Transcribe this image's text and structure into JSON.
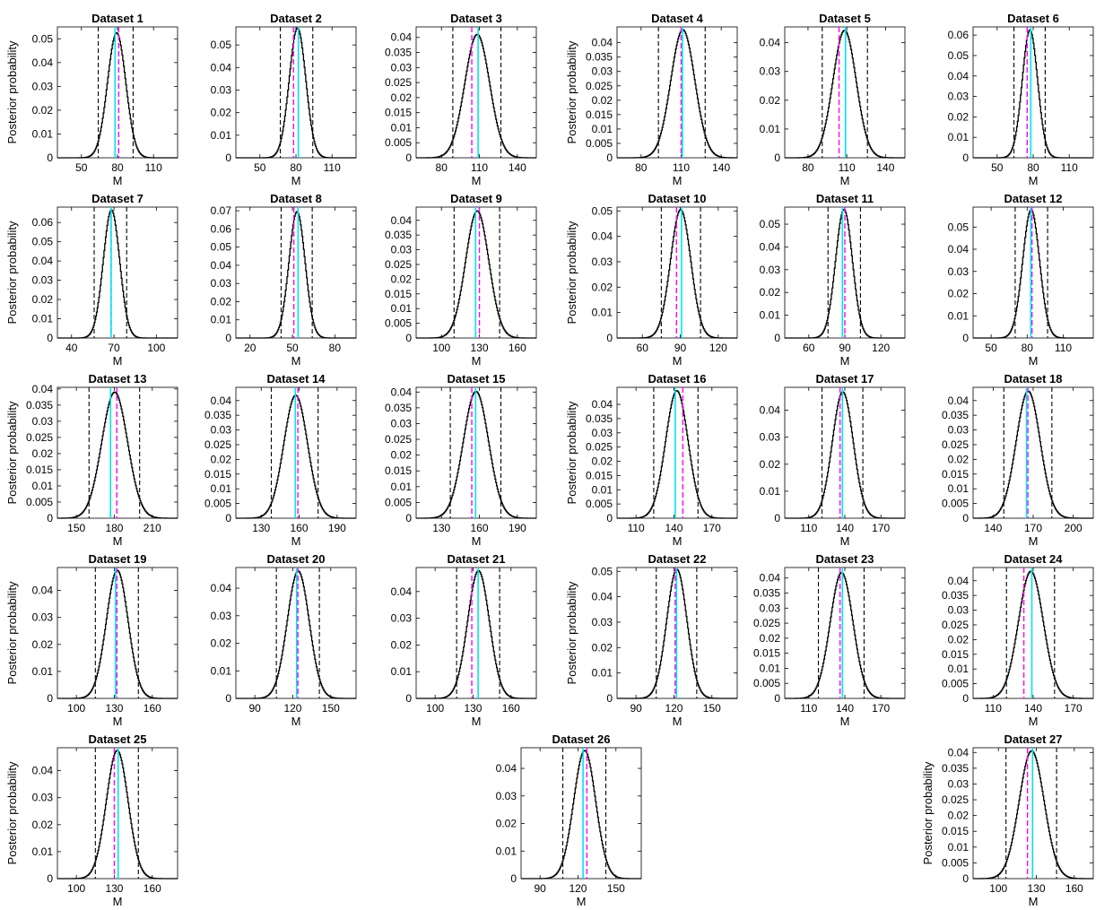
{
  "figure": {
    "ylabel": "Posterior probability",
    "xlabel": "M"
  },
  "chart_data": [
    {
      "type": "line",
      "title": "Dataset 1",
      "xlabel": "M",
      "ylabel": "Posterior probability",
      "xlim": [
        30,
        130
      ],
      "ylim": [
        0,
        0.055
      ],
      "xticks": [
        50,
        80,
        110
      ],
      "yticks": [
        0,
        0.01,
        0.02,
        0.03,
        0.04,
        0.05
      ],
      "peak": {
        "center": 79,
        "sd": 7.6,
        "height": 0.0525
      },
      "vlines": {
        "cyan": 78,
        "magenta": 81,
        "ci": [
          64,
          93
        ]
      }
    },
    {
      "type": "line",
      "title": "Dataset 2",
      "xlabel": "M",
      "ylabel": "",
      "xlim": [
        30,
        130
      ],
      "ylim": [
        0,
        0.058
      ],
      "xticks": [
        50,
        80,
        110
      ],
      "yticks": [
        0,
        0.01,
        0.02,
        0.03,
        0.04,
        0.05
      ],
      "peak": {
        "center": 81,
        "sd": 6.9,
        "height": 0.0575
      },
      "vlines": {
        "cyan": 82,
        "magenta": 78,
        "ci": [
          67,
          94
        ]
      }
    },
    {
      "type": "line",
      "title": "Dataset 3",
      "xlabel": "M",
      "ylabel": "",
      "xlim": [
        60,
        155
      ],
      "ylim": [
        0,
        0.0435
      ],
      "xticks": [
        80,
        110,
        140
      ],
      "yticks": [
        0,
        0.005,
        0.01,
        0.015,
        0.02,
        0.025,
        0.03,
        0.035,
        0.04
      ],
      "peak": {
        "center": 108,
        "sd": 9.8,
        "height": 0.041
      },
      "vlines": {
        "cyan": 109,
        "magenta": 104,
        "ci": [
          89,
          127
        ]
      }
    },
    {
      "type": "line",
      "title": "Dataset 4",
      "xlabel": "M",
      "ylabel": "Posterior probability",
      "xlim": [
        62,
        152
      ],
      "ylim": [
        0,
        0.0455
      ],
      "xticks": [
        80,
        110,
        140
      ],
      "yticks": [
        0,
        0.005,
        0.01,
        0.015,
        0.02,
        0.025,
        0.03,
        0.035,
        0.04
      ],
      "peak": {
        "center": 111,
        "sd": 9.0,
        "height": 0.0445
      },
      "vlines": {
        "cyan": 111,
        "magenta": 110,
        "ci": [
          93,
          128
        ]
      }
    },
    {
      "type": "line",
      "title": "Dataset 5",
      "xlabel": "M",
      "ylabel": "",
      "xlim": [
        62,
        155
      ],
      "ylim": [
        0,
        0.0455
      ],
      "xticks": [
        80,
        110,
        140
      ],
      "yticks": [
        0,
        0.01,
        0.02,
        0.03,
        0.04
      ],
      "peak": {
        "center": 108,
        "sd": 9.0,
        "height": 0.0443
      },
      "vlines": {
        "cyan": 109,
        "magenta": 104,
        "ci": [
          91,
          126
        ]
      }
    },
    {
      "type": "line",
      "title": "Dataset 6",
      "xlabel": "M",
      "ylabel": "",
      "xlim": [
        30,
        130
      ],
      "ylim": [
        0,
        0.064
      ],
      "xticks": [
        50,
        80,
        110
      ],
      "yticks": [
        0,
        0.01,
        0.02,
        0.03,
        0.04,
        0.05,
        0.06
      ],
      "peak": {
        "center": 77,
        "sd": 6.4,
        "height": 0.0625
      },
      "vlines": {
        "cyan": 78,
        "magenta": 75,
        "ci": [
          64,
          90
        ]
      }
    },
    {
      "type": "line",
      "title": "Dataset 7",
      "xlabel": "M",
      "ylabel": "Posterior probability",
      "xlim": [
        30,
        115
      ],
      "ylim": [
        0,
        0.068
      ],
      "xticks": [
        40,
        70,
        100
      ],
      "yticks": [
        0,
        0.01,
        0.02,
        0.03,
        0.04,
        0.05,
        0.06
      ],
      "peak": {
        "center": 68,
        "sd": 5.8,
        "height": 0.0665
      },
      "vlines": {
        "cyan": 68,
        "magenta": 68,
        "ci": [
          56,
          79
        ]
      }
    },
    {
      "type": "line",
      "title": "Dataset 8",
      "xlabel": "M",
      "ylabel": "",
      "xlim": [
        10,
        95
      ],
      "ylim": [
        0,
        0.072
      ],
      "xticks": [
        20,
        50,
        80
      ],
      "yticks": [
        0,
        0.01,
        0.02,
        0.03,
        0.04,
        0.05,
        0.06,
        0.07
      ],
      "peak": {
        "center": 53,
        "sd": 5.7,
        "height": 0.0695
      },
      "vlines": {
        "cyan": 54,
        "magenta": 51,
        "ci": [
          42,
          64
        ]
      }
    },
    {
      "type": "line",
      "title": "Dataset 9",
      "xlabel": "M",
      "ylabel": "",
      "xlim": [
        80,
        175
      ],
      "ylim": [
        0,
        0.0445
      ],
      "xticks": [
        100,
        130,
        160
      ],
      "yticks": [
        0,
        0.005,
        0.01,
        0.015,
        0.02,
        0.025,
        0.03,
        0.035,
        0.04
      ],
      "peak": {
        "center": 128,
        "sd": 9.2,
        "height": 0.0432
      },
      "vlines": {
        "cyan": 127,
        "magenta": 130,
        "ci": [
          110,
          146
        ]
      }
    },
    {
      "type": "line",
      "title": "Dataset 10",
      "xlabel": "M",
      "ylabel": "Posterior probability",
      "xlim": [
        40,
        135
      ],
      "ylim": [
        0,
        0.0515
      ],
      "xticks": [
        60,
        90,
        120
      ],
      "yticks": [
        0,
        0.01,
        0.02,
        0.03,
        0.04,
        0.05
      ],
      "peak": {
        "center": 90,
        "sd": 8.0,
        "height": 0.0505
      },
      "vlines": {
        "cyan": 91,
        "magenta": 87,
        "ci": [
          75,
          106
        ]
      }
    },
    {
      "type": "line",
      "title": "Dataset 11",
      "xlabel": "M",
      "ylabel": "",
      "xlim": [
        40,
        140
      ],
      "ylim": [
        0,
        0.0575
      ],
      "xticks": [
        60,
        90,
        120
      ],
      "yticks": [
        0,
        0.01,
        0.02,
        0.03,
        0.04,
        0.05
      ],
      "peak": {
        "center": 89,
        "sd": 7.0,
        "height": 0.0565
      },
      "vlines": {
        "cyan": 88,
        "magenta": 90,
        "ci": [
          76,
          103
        ]
      }
    },
    {
      "type": "line",
      "title": "Dataset 12",
      "xlabel": "M",
      "ylabel": "",
      "xlim": [
        35,
        135
      ],
      "ylim": [
        0,
        0.059
      ],
      "xticks": [
        50,
        80,
        110
      ],
      "yticks": [
        0,
        0.01,
        0.02,
        0.03,
        0.04,
        0.05
      ],
      "peak": {
        "center": 83,
        "sd": 7.0,
        "height": 0.0578
      },
      "vlines": {
        "cyan": 83,
        "magenta": 84,
        "ci": [
          70,
          97
        ]
      }
    },
    {
      "type": "line",
      "title": "Dataset 13",
      "xlabel": "M",
      "ylabel": "Posterior probability",
      "xlim": [
        135,
        230
      ],
      "ylim": [
        0,
        0.0405
      ],
      "xticks": [
        150,
        180,
        210
      ],
      "yticks": [
        0,
        0.005,
        0.01,
        0.015,
        0.02,
        0.025,
        0.03,
        0.035,
        0.04
      ],
      "peak": {
        "center": 180,
        "sd": 10.2,
        "height": 0.039
      },
      "vlines": {
        "cyan": 177,
        "magenta": 182,
        "ci": [
          160,
          200
        ]
      }
    },
    {
      "type": "line",
      "title": "Dataset 14",
      "xlabel": "M",
      "ylabel": "",
      "xlim": [
        110,
        205
      ],
      "ylim": [
        0,
        0.0445
      ],
      "xticks": [
        130,
        160,
        190
      ],
      "yticks": [
        0,
        0.005,
        0.01,
        0.015,
        0.02,
        0.025,
        0.03,
        0.035,
        0.04
      ],
      "peak": {
        "center": 157,
        "sd": 9.4,
        "height": 0.0418
      },
      "vlines": {
        "cyan": 157,
        "magenta": 159,
        "ci": [
          138,
          175
        ]
      }
    },
    {
      "type": "line",
      "title": "Dataset 15",
      "xlabel": "M",
      "ylabel": "",
      "xlim": [
        110,
        205
      ],
      "ylim": [
        0,
        0.0415
      ],
      "xticks": [
        130,
        160,
        190
      ],
      "yticks": [
        0,
        0.005,
        0.01,
        0.015,
        0.02,
        0.025,
        0.03,
        0.035,
        0.04
      ],
      "peak": {
        "center": 157,
        "sd": 10.0,
        "height": 0.0402
      },
      "vlines": {
        "cyan": 157,
        "magenta": 154,
        "ci": [
          137,
          177
        ]
      }
    },
    {
      "type": "line",
      "title": "Dataset 16",
      "xlabel": "M",
      "ylabel": "Posterior probability",
      "xlim": [
        95,
        190
      ],
      "ylim": [
        0,
        0.046
      ],
      "xticks": [
        110,
        140,
        170
      ],
      "yticks": [
        0,
        0.005,
        0.01,
        0.015,
        0.02,
        0.025,
        0.03,
        0.035,
        0.04
      ],
      "peak": {
        "center": 142,
        "sd": 8.9,
        "height": 0.0448
      },
      "vlines": {
        "cyan": 141,
        "magenta": 147,
        "ci": [
          124,
          159
        ]
      }
    },
    {
      "type": "line",
      "title": "Dataset 17",
      "xlabel": "M",
      "ylabel": "",
      "xlim": [
        90,
        190
      ],
      "ylim": [
        0,
        0.0485
      ],
      "xticks": [
        110,
        140,
        170
      ],
      "yticks": [
        0,
        0.01,
        0.02,
        0.03,
        0.04
      ],
      "peak": {
        "center": 138,
        "sd": 8.7,
        "height": 0.0468
      },
      "vlines": {
        "cyan": 138,
        "magenta": 136,
        "ci": [
          121,
          155
        ]
      }
    },
    {
      "type": "line",
      "title": "Dataset 18",
      "xlabel": "M",
      "ylabel": "",
      "xlim": [
        125,
        215
      ],
      "ylim": [
        0,
        0.0445
      ],
      "xticks": [
        140,
        170,
        200
      ],
      "yticks": [
        0,
        0.005,
        0.01,
        0.015,
        0.02,
        0.025,
        0.03,
        0.035,
        0.04
      ],
      "peak": {
        "center": 166,
        "sd": 9.0,
        "height": 0.0432
      },
      "vlines": {
        "cyan": 165,
        "magenta": 166,
        "ci": [
          148,
          184
        ]
      }
    },
    {
      "type": "line",
      "title": "Dataset 19",
      "xlabel": "M",
      "ylabel": "Posterior probability",
      "xlim": [
        85,
        180
      ],
      "ylim": [
        0,
        0.0485
      ],
      "xticks": [
        100,
        130,
        160
      ],
      "yticks": [
        0,
        0.01,
        0.02,
        0.03,
        0.04
      ],
      "peak": {
        "center": 132,
        "sd": 8.6,
        "height": 0.0475
      },
      "vlines": {
        "cyan": 131,
        "magenta": 132,
        "ci": [
          115,
          149
        ]
      }
    },
    {
      "type": "line",
      "title": "Dataset 20",
      "xlabel": "M",
      "ylabel": "",
      "xlim": [
        75,
        170
      ],
      "ylim": [
        0,
        0.0475
      ],
      "xticks": [
        90,
        120,
        150
      ],
      "yticks": [
        0,
        0.01,
        0.02,
        0.03,
        0.04
      ],
      "peak": {
        "center": 124,
        "sd": 8.7,
        "height": 0.0462
      },
      "vlines": {
        "cyan": 123,
        "magenta": 124,
        "ci": [
          107,
          141
        ]
      }
    },
    {
      "type": "line",
      "title": "Dataset 21",
      "xlabel": "M",
      "ylabel": "",
      "xlim": [
        85,
        180
      ],
      "ylim": [
        0,
        0.049
      ],
      "xticks": [
        100,
        130,
        160
      ],
      "yticks": [
        0,
        0.01,
        0.02,
        0.03,
        0.04
      ],
      "peak": {
        "center": 134,
        "sd": 8.6,
        "height": 0.0478
      },
      "vlines": {
        "cyan": 134,
        "magenta": 129,
        "ci": [
          117,
          151
        ]
      }
    },
    {
      "type": "line",
      "title": "Dataset 22",
      "xlabel": "M",
      "ylabel": "Posterior probability",
      "xlim": [
        75,
        170
      ],
      "ylim": [
        0,
        0.0515
      ],
      "xticks": [
        90,
        120,
        150
      ],
      "yticks": [
        0,
        0.01,
        0.02,
        0.03,
        0.04,
        0.05
      ],
      "peak": {
        "center": 122,
        "sd": 8.0,
        "height": 0.0508
      },
      "vlines": {
        "cyan": 122,
        "magenta": 121,
        "ci": [
          106,
          138
        ]
      }
    },
    {
      "type": "line",
      "title": "Dataset 23",
      "xlabel": "M",
      "ylabel": "",
      "xlim": [
        90,
        190
      ],
      "ylim": [
        0,
        0.0435
      ],
      "xticks": [
        110,
        140,
        170
      ],
      "yticks": [
        0,
        0.005,
        0.01,
        0.015,
        0.02,
        0.025,
        0.03,
        0.035,
        0.04
      ],
      "peak": {
        "center": 137,
        "sd": 9.5,
        "height": 0.0418
      },
      "vlines": {
        "cyan": 138,
        "magenta": 136,
        "ci": [
          118,
          156
        ]
      }
    },
    {
      "type": "line",
      "title": "Dataset 24",
      "xlabel": "M",
      "ylabel": "",
      "xlim": [
        95,
        185
      ],
      "ylim": [
        0,
        0.0445
      ],
      "xticks": [
        110,
        140,
        170
      ],
      "yticks": [
        0,
        0.005,
        0.01,
        0.015,
        0.02,
        0.025,
        0.03,
        0.035,
        0.04
      ],
      "peak": {
        "center": 138,
        "sd": 9.3,
        "height": 0.0432
      },
      "vlines": {
        "cyan": 139,
        "magenta": 133,
        "ci": [
          120,
          156
        ]
      }
    },
    {
      "type": "line",
      "title": "Dataset 25",
      "xlabel": "M",
      "ylabel": "Posterior probability",
      "xlim": [
        85,
        180
      ],
      "ylim": [
        0,
        0.0485
      ],
      "xticks": [
        100,
        130,
        160
      ],
      "yticks": [
        0,
        0.01,
        0.02,
        0.03,
        0.04
      ],
      "peak": {
        "center": 132,
        "sd": 8.6,
        "height": 0.0475
      },
      "vlines": {
        "cyan": 133,
        "magenta": 130,
        "ci": [
          115,
          149
        ]
      }
    },
    {
      "type": "line",
      "title": "Dataset 26",
      "xlabel": "M",
      "ylabel": "",
      "xlim": [
        75,
        170
      ],
      "ylim": [
        0,
        0.0475
      ],
      "xticks": [
        90,
        120,
        150
      ],
      "yticks": [
        0,
        0.01,
        0.02,
        0.03,
        0.04
      ],
      "peak": {
        "center": 125,
        "sd": 8.7,
        "height": 0.0465
      },
      "vlines": {
        "cyan": 124,
        "magenta": 127,
        "ci": [
          108,
          142
        ]
      }
    },
    {
      "type": "line",
      "title": "Dataset 27",
      "xlabel": "M",
      "ylabel": "Posterior probability",
      "xlim": [
        80,
        175
      ],
      "ylim": [
        0,
        0.0415
      ],
      "xticks": [
        100,
        130,
        160
      ],
      "yticks": [
        0,
        0.005,
        0.01,
        0.015,
        0.02,
        0.025,
        0.03,
        0.035,
        0.04
      ],
      "peak": {
        "center": 126,
        "sd": 9.9,
        "height": 0.0405
      },
      "vlines": {
        "cyan": 127,
        "magenta": 123,
        "ci": [
          106,
          146
        ]
      }
    }
  ],
  "colors": {
    "curve": "#000000",
    "ci": "#000000",
    "cyan": "#00e5f0",
    "magenta": "#ff00ff",
    "axis": "#000000"
  }
}
